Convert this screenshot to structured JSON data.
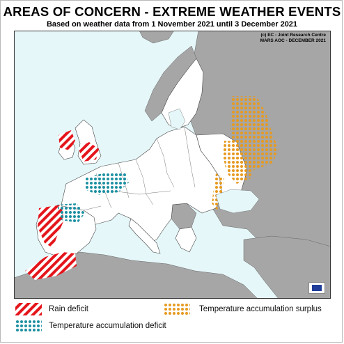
{
  "title": "AREAS OF CONCERN - EXTREME WEATHER EVENTS",
  "subtitle": "Based on weather data from 1 November 2021 until 3 December 2021",
  "credit_line1": "(c) EC - Joint Research Centre",
  "credit_line2": "MARS AOC - DECEMBER 2021",
  "colors": {
    "sea": "#e6f7f9",
    "land": "#ffffff",
    "outside_land": "#a6a6a6",
    "border": "#555555",
    "rain_deficit": "#e4151b",
    "temperature_deficit": "#1b8fa1",
    "temperature_surplus": "#e69a1f"
  },
  "legend": {
    "rain_deficit": "Rain deficit",
    "temperature_deficit": "Temperature accumulation deficit",
    "temperature_surplus": "Temperature accumulation surplus"
  },
  "areas": [
    {
      "name": "Western Ireland",
      "category": "rain_deficit"
    },
    {
      "name": "Eastern England",
      "category": "rain_deficit"
    },
    {
      "name": "Western Iberia",
      "category": "rain_deficit"
    },
    {
      "name": "Morocco",
      "category": "rain_deficit"
    },
    {
      "name": "Western France",
      "category": "temperature_deficit"
    },
    {
      "name": "Northern Spain",
      "category": "temperature_deficit"
    },
    {
      "name": "Western Russia",
      "category": "temperature_surplus"
    },
    {
      "name": "Eastern Ukraine",
      "category": "temperature_surplus"
    },
    {
      "name": "Black Sea coast",
      "category": "temperature_surplus"
    }
  ]
}
